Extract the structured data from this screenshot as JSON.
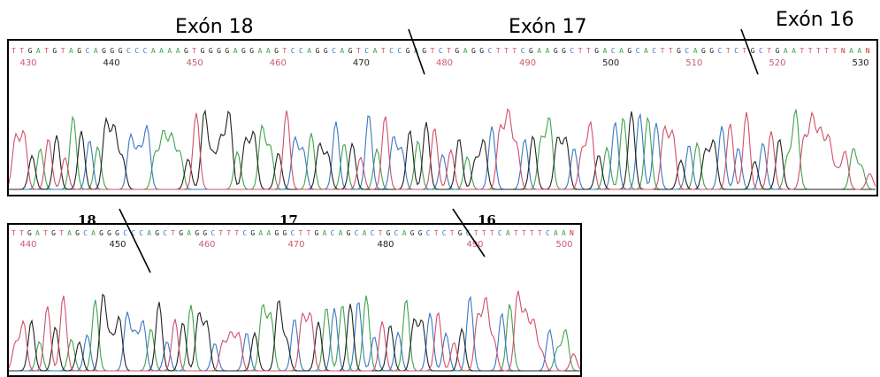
{
  "panels": [
    {
      "headers": {
        "left": "Exón 18",
        "middle": "Exón 17",
        "right": "Exón 16"
      },
      "sequence": "TTGATGTAGCAGGGCCCAAAAGTGGGGAGGAAGTCCAGGCAGTCATCCGAGTCTGAGGCTTTCGAAGGCTTGACAGCACTTGCAGGCTCTGCTGAATTTTTNAAN",
      "positions": [
        "430",
        "440",
        "450",
        "460",
        "470",
        "480",
        "490",
        "500",
        "510",
        "520",
        "530"
      ]
    },
    {
      "headers": {
        "left": "18",
        "middle": "17",
        "right": "16"
      },
      "sequence": "TTGATGTAGCAGGGCCCAGCTGAGGCTTTCGAAGGCTTGACAGCACTGCAGGCTCTGCTTTCATTTTCAAN",
      "positions": [
        "440",
        "450",
        "460",
        "470",
        "480",
        "490",
        "500"
      ]
    }
  ],
  "trace_colors": {
    "A": "#3fa34d",
    "C": "#3a78c2",
    "G": "#222222",
    "T": "#d0506a"
  }
}
